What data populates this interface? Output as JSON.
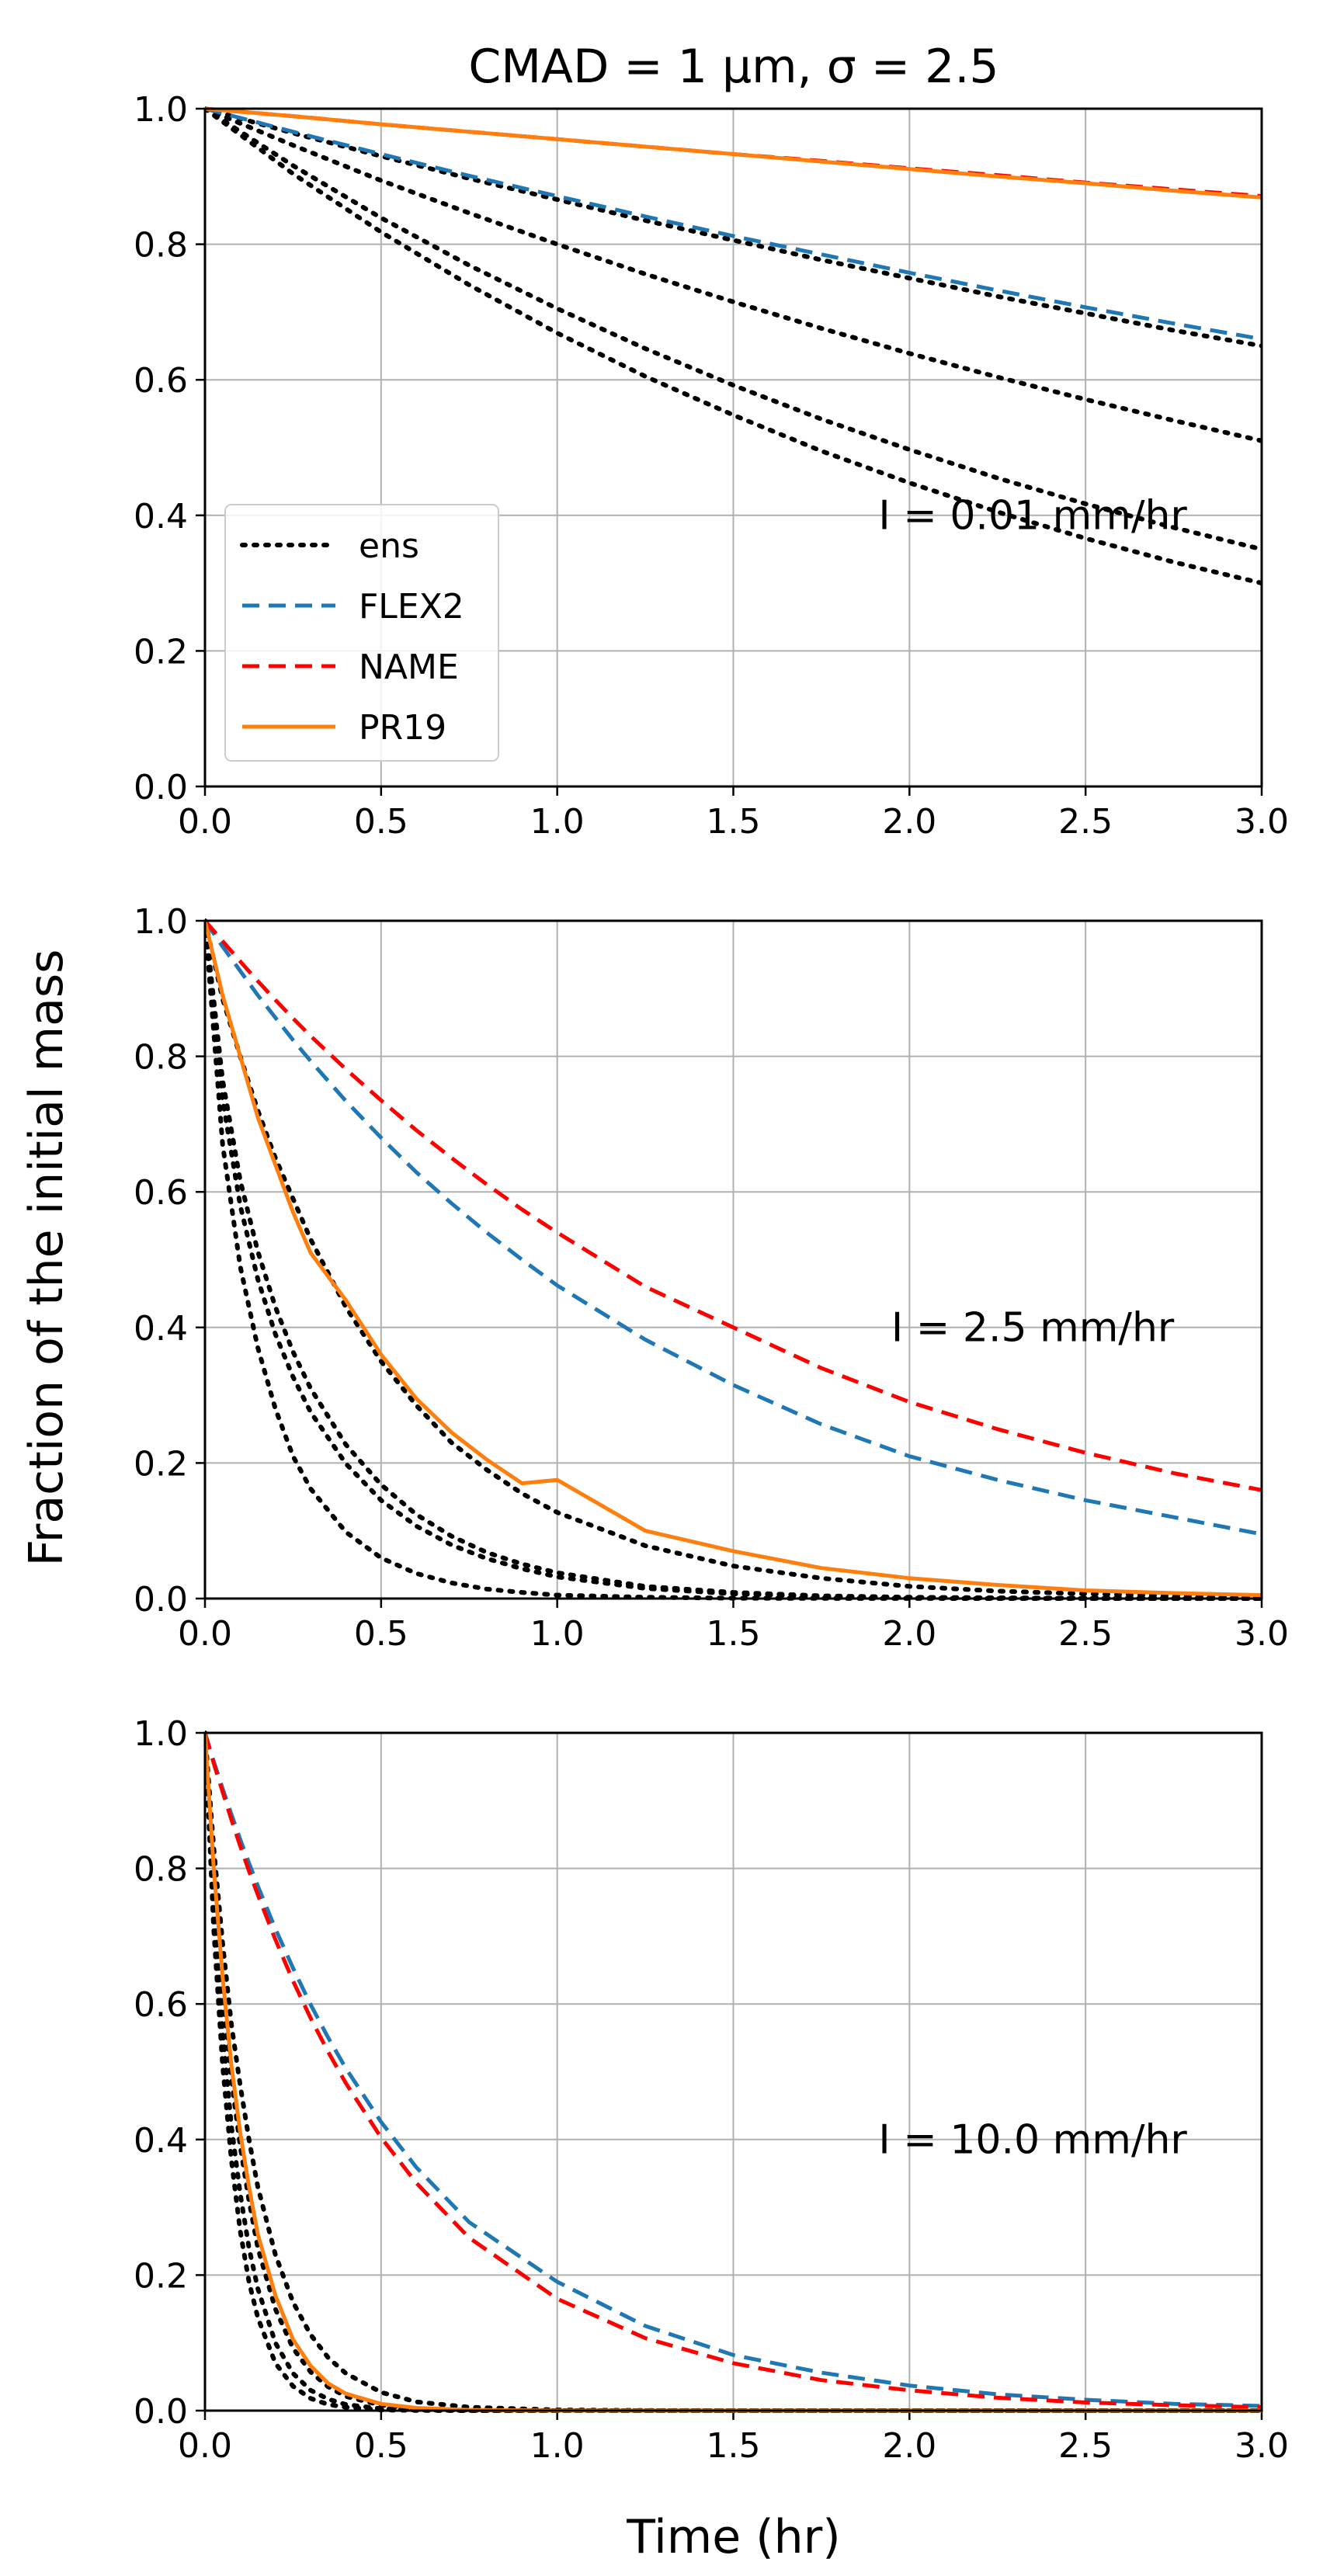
{
  "figure_title": "CMAD = 1 µm, σ = 2.5",
  "xlabel": "Time (hr)",
  "ylabel": "Fraction of the initial mass",
  "colors": {
    "ens": "#000000",
    "FLEX2": "#1f77b4",
    "NAME": "#ff0000",
    "PR19": "#ff7f0e",
    "grid": "#b0b0b0"
  },
  "legend": {
    "placement": "upper-left of top panel",
    "entries": [
      {
        "label": "ens",
        "style": "dotted",
        "color": "#000000"
      },
      {
        "label": "FLEX2",
        "style": "dashed",
        "color": "#1f77b4"
      },
      {
        "label": "NAME",
        "style": "dashed",
        "color": "#ff0000"
      },
      {
        "label": "PR19",
        "style": "solid",
        "color": "#ff7f0e"
      }
    ]
  },
  "chart_data": [
    {
      "type": "line",
      "annotation": "I = 0.01 mm/hr",
      "xlim": [
        0,
        3
      ],
      "ylim": [
        0,
        1
      ],
      "xticks": [
        "0.0",
        "0.5",
        "1.0",
        "1.5",
        "2.0",
        "2.5",
        "3.0"
      ],
      "yticks": [
        "0.0",
        "0.2",
        "0.4",
        "0.6",
        "0.8",
        "1.0"
      ],
      "grid": true,
      "x": [
        0,
        0.25,
        0.5,
        0.75,
        1.0,
        1.25,
        1.5,
        1.75,
        2.0,
        2.25,
        2.5,
        2.75,
        3.0
      ],
      "series": [
        {
          "name": "ens",
          "style": "dotted",
          "color": "#000000",
          "values": [
            1.0,
            0.964,
            0.93,
            0.897,
            0.866,
            0.835,
            0.806,
            0.777,
            0.75,
            0.723,
            0.698,
            0.673,
            0.65
          ]
        },
        {
          "name": "ens",
          "style": "dotted",
          "color": "#000000",
          "values": [
            1.0,
            0.946,
            0.894,
            0.846,
            0.8,
            0.756,
            0.715,
            0.676,
            0.639,
            0.604,
            0.571,
            0.54,
            0.51
          ]
        },
        {
          "name": "ens",
          "style": "dotted",
          "color": "#000000",
          "values": [
            1.0,
            0.916,
            0.839,
            0.769,
            0.705,
            0.646,
            0.592,
            0.542,
            0.497,
            0.455,
            0.417,
            0.382,
            0.35
          ]
        },
        {
          "name": "ens",
          "style": "dotted",
          "color": "#000000",
          "values": [
            1.0,
            0.904,
            0.818,
            0.74,
            0.669,
            0.605,
            0.548,
            0.495,
            0.448,
            0.405,
            0.366,
            0.331,
            0.3
          ]
        },
        {
          "name": "FLEX2",
          "style": "dashed",
          "color": "#1f77b4",
          "values": [
            1.0,
            0.966,
            0.933,
            0.901,
            0.871,
            0.841,
            0.812,
            0.785,
            0.758,
            0.732,
            0.707,
            0.683,
            0.66
          ]
        },
        {
          "name": "NAME",
          "style": "dashed",
          "color": "#ff0000",
          "values": [
            1.0,
            0.989,
            0.977,
            0.966,
            0.955,
            0.944,
            0.933,
            0.923,
            0.912,
            0.902,
            0.891,
            0.881,
            0.871
          ]
        },
        {
          "name": "PR19",
          "style": "solid",
          "color": "#ff7f0e",
          "values": [
            1.0,
            0.989,
            0.977,
            0.966,
            0.955,
            0.944,
            0.933,
            0.922,
            0.911,
            0.9,
            0.89,
            0.879,
            0.869
          ]
        }
      ]
    },
    {
      "type": "line",
      "annotation": "I = 2.5 mm/hr",
      "xlim": [
        0,
        3
      ],
      "ylim": [
        0,
        1
      ],
      "xticks": [
        "0.0",
        "0.5",
        "1.0",
        "1.5",
        "2.0",
        "2.5",
        "3.0"
      ],
      "yticks": [
        "0.0",
        "0.2",
        "0.4",
        "0.6",
        "0.8",
        "1.0"
      ],
      "grid": true,
      "x": [
        0,
        0.05,
        0.1,
        0.15,
        0.2,
        0.25,
        0.3,
        0.4,
        0.5,
        0.6,
        0.7,
        0.8,
        0.9,
        1.0,
        1.25,
        1.5,
        1.75,
        2.0,
        2.25,
        2.5,
        2.75,
        3.0
      ],
      "series": [
        {
          "name": "ens",
          "style": "dotted",
          "color": "#000000",
          "values": [
            1.0,
            0.736,
            0.58,
            0.471,
            0.39,
            0.327,
            0.275,
            0.199,
            0.145,
            0.107,
            0.079,
            0.059,
            0.044,
            0.032,
            0.015,
            0.007,
            0.003,
            0.0015,
            0.0007,
            0.0003,
            0.0001,
            0.0001
          ]
        },
        {
          "name": "ens",
          "style": "dotted",
          "color": "#000000",
          "values": [
            1.0,
            0.765,
            0.617,
            0.512,
            0.43,
            0.364,
            0.31,
            0.227,
            0.168,
            0.124,
            0.092,
            0.068,
            0.051,
            0.038,
            0.018,
            0.009,
            0.004,
            0.002,
            0.001,
            0.0005,
            0.0002,
            0.0001
          ]
        },
        {
          "name": "ens",
          "style": "dotted",
          "color": "#000000",
          "values": [
            1.0,
            0.885,
            0.8,
            0.72,
            0.65,
            0.59,
            0.53,
            0.43,
            0.35,
            0.285,
            0.23,
            0.19,
            0.155,
            0.127,
            0.078,
            0.048,
            0.03,
            0.018,
            0.011,
            0.007,
            0.004,
            0.003
          ]
        },
        {
          "name": "ens",
          "style": "dotted",
          "color": "#000000",
          "values": [
            1.0,
            0.67,
            0.49,
            0.37,
            0.28,
            0.21,
            0.162,
            0.098,
            0.06,
            0.037,
            0.023,
            0.014,
            0.009,
            0.005,
            0.002,
            0.0005,
            0.0002,
            0.0001,
            0.0,
            0.0,
            0.0,
            0.0
          ]
        },
        {
          "name": "FLEX2",
          "style": "dashed",
          "color": "#1f77b4",
          "values": [
            1.0,
            0.962,
            0.926,
            0.89,
            0.857,
            0.824,
            0.793,
            0.734,
            0.68,
            0.629,
            0.583,
            0.54,
            0.5,
            0.462,
            0.382,
            0.315,
            0.257,
            0.21,
            0.175,
            0.145,
            0.12,
            0.095
          ]
        },
        {
          "name": "NAME",
          "style": "dashed",
          "color": "#ff0000",
          "values": [
            1.0,
            0.97,
            0.94,
            0.911,
            0.883,
            0.856,
            0.83,
            0.781,
            0.735,
            0.691,
            0.65,
            0.611,
            0.574,
            0.54,
            0.46,
            0.4,
            0.34,
            0.29,
            0.25,
            0.215,
            0.185,
            0.16
          ]
        },
        {
          "name": "PR19",
          "style": "solid",
          "color": "#ff7f0e",
          "values": [
            1.0,
            0.89,
            0.8,
            0.71,
            0.64,
            0.57,
            0.51,
            0.44,
            0.36,
            0.295,
            0.245,
            0.205,
            0.17,
            0.175,
            0.1,
            0.07,
            0.045,
            0.03,
            0.02,
            0.012,
            0.008,
            0.005
          ]
        }
      ]
    },
    {
      "type": "line",
      "annotation": "I = 10.0 mm/hr",
      "xlim": [
        0,
        3
      ],
      "ylim": [
        0,
        1
      ],
      "xticks": [
        "0.0",
        "0.5",
        "1.0",
        "1.5",
        "2.0",
        "2.5",
        "3.0"
      ],
      "yticks": [
        "0.0",
        "0.2",
        "0.4",
        "0.6",
        "0.8",
        "1.0"
      ],
      "grid": true,
      "x": [
        0,
        0.025,
        0.05,
        0.075,
        0.1,
        0.125,
        0.15,
        0.2,
        0.25,
        0.3,
        0.35,
        0.4,
        0.5,
        0.6,
        0.75,
        1.0,
        1.25,
        1.5,
        1.75,
        2.0,
        2.25,
        2.5,
        2.75,
        3.0
      ],
      "series": [
        {
          "name": "ens",
          "style": "dotted",
          "color": "#000000",
          "values": [
            1.0,
            0.75,
            0.56,
            0.42,
            0.32,
            0.24,
            0.18,
            0.1,
            0.055,
            0.03,
            0.017,
            0.009,
            0.003,
            0.001,
            0.0002,
            0.0,
            0.0,
            0.0,
            0.0,
            0.0,
            0.0,
            0.0,
            0.0,
            0.0
          ]
        },
        {
          "name": "ens",
          "style": "dotted",
          "color": "#000000",
          "values": [
            1.0,
            0.79,
            0.62,
            0.49,
            0.39,
            0.31,
            0.24,
            0.15,
            0.092,
            0.057,
            0.035,
            0.021,
            0.008,
            0.003,
            0.0007,
            0.0,
            0.0,
            0.0,
            0.0,
            0.0,
            0.0,
            0.0,
            0.0,
            0.0
          ]
        },
        {
          "name": "ens",
          "style": "dotted",
          "color": "#000000",
          "values": [
            1.0,
            0.83,
            0.69,
            0.57,
            0.48,
            0.4,
            0.33,
            0.23,
            0.16,
            0.112,
            0.078,
            0.055,
            0.027,
            0.013,
            0.005,
            0.001,
            0.0002,
            0.0,
            0.0,
            0.0,
            0.0,
            0.0,
            0.0,
            0.0
          ]
        },
        {
          "name": "ens",
          "style": "dotted",
          "color": "#000000",
          "values": [
            1.0,
            0.71,
            0.51,
            0.37,
            0.265,
            0.19,
            0.137,
            0.07,
            0.036,
            0.018,
            0.009,
            0.005,
            0.001,
            0.0003,
            0.0,
            0.0,
            0.0,
            0.0,
            0.0,
            0.0,
            0.0,
            0.0,
            0.0,
            0.0
          ]
        },
        {
          "name": "FLEX2",
          "style": "dashed",
          "color": "#1f77b4",
          "values": [
            1.0,
            0.958,
            0.918,
            0.88,
            0.843,
            0.808,
            0.774,
            0.711,
            0.653,
            0.599,
            0.55,
            0.505,
            0.426,
            0.359,
            0.278,
            0.19,
            0.125,
            0.082,
            0.056,
            0.037,
            0.024,
            0.016,
            0.01,
            0.007
          ]
        },
        {
          "name": "NAME",
          "style": "dashed",
          "color": "#ff0000",
          "values": [
            1.0,
            0.955,
            0.913,
            0.872,
            0.833,
            0.796,
            0.761,
            0.695,
            0.634,
            0.579,
            0.529,
            0.483,
            0.403,
            0.336,
            0.255,
            0.165,
            0.107,
            0.07,
            0.045,
            0.03,
            0.019,
            0.012,
            0.008,
            0.005
          ]
        },
        {
          "name": "PR19",
          "style": "solid",
          "color": "#ff7f0e",
          "values": [
            1.0,
            0.8,
            0.64,
            0.51,
            0.41,
            0.33,
            0.26,
            0.17,
            0.105,
            0.066,
            0.04,
            0.025,
            0.01,
            0.004,
            0.001,
            0.0,
            0.0,
            0.0,
            0.0,
            0.0,
            0.0,
            0.0,
            0.0,
            0.0
          ]
        }
      ]
    }
  ]
}
